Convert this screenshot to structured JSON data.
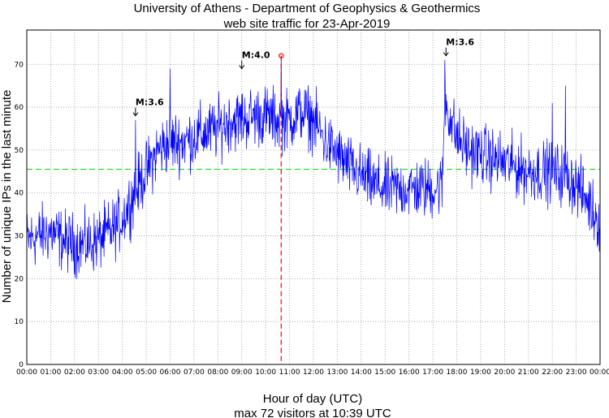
{
  "chart_data": {
    "type": "line",
    "title": "University of Athens - Department of Geophysics & Geothermics",
    "subtitle": "web site traffic for 23-Apr-2019",
    "xlabel": "Hour of day (UTC)",
    "ylabel": "Number of unique IPs in the last minute",
    "summary": "max 72 visitors at 10:39 UTC",
    "xlim": [
      0,
      24
    ],
    "ylim": [
      0,
      78
    ],
    "x_ticks": [
      "00:00",
      "01:00",
      "02:00",
      "03:00",
      "04:00",
      "05:00",
      "06:00",
      "07:00",
      "08:00",
      "09:00",
      "10:00",
      "11:00",
      "12:00",
      "13:00",
      "14:00",
      "15:00",
      "16:00",
      "17:00",
      "18:00",
      "19:00",
      "20:00",
      "21:00",
      "22:00",
      "23:00",
      "00:00"
    ],
    "y_ticks": [
      0,
      10,
      20,
      30,
      40,
      50,
      60,
      70
    ],
    "grid": true,
    "series": [
      {
        "color": "#0000ff",
        "trend": [
          [
            0.0,
            29
          ],
          [
            0.5,
            30
          ],
          [
            1.0,
            31
          ],
          [
            1.5,
            29
          ],
          [
            2.0,
            28
          ],
          [
            2.5,
            28
          ],
          [
            3.0,
            29
          ],
          [
            3.5,
            31
          ],
          [
            4.0,
            34
          ],
          [
            4.5,
            40
          ],
          [
            5.0,
            45
          ],
          [
            5.5,
            50
          ],
          [
            6.0,
            52
          ],
          [
            6.5,
            52
          ],
          [
            7.0,
            53
          ],
          [
            7.5,
            54
          ],
          [
            8.0,
            55
          ],
          [
            8.5,
            57
          ],
          [
            9.0,
            57
          ],
          [
            9.5,
            58
          ],
          [
            10.0,
            58
          ],
          [
            10.5,
            57
          ],
          [
            11.0,
            57
          ],
          [
            11.5,
            59
          ],
          [
            12.0,
            57
          ],
          [
            12.5,
            52
          ],
          [
            13.0,
            49
          ],
          [
            13.5,
            46
          ],
          [
            14.0,
            44
          ],
          [
            14.5,
            42
          ],
          [
            15.0,
            41
          ],
          [
            15.5,
            41
          ],
          [
            16.0,
            41
          ],
          [
            16.5,
            41
          ],
          [
            17.0,
            41
          ],
          [
            17.4,
            42
          ],
          [
            17.5,
            62
          ],
          [
            17.7,
            58
          ],
          [
            18.0,
            53
          ],
          [
            18.5,
            50
          ],
          [
            19.0,
            49
          ],
          [
            19.5,
            48
          ],
          [
            20.0,
            47
          ],
          [
            20.5,
            46
          ],
          [
            21.0,
            45
          ],
          [
            21.5,
            45
          ],
          [
            22.0,
            45
          ],
          [
            22.5,
            44
          ],
          [
            23.0,
            42
          ],
          [
            23.5,
            38
          ],
          [
            24.0,
            33
          ]
        ],
        "spikes": [
          [
            4.55,
            57
          ],
          [
            6.0,
            69
          ],
          [
            9.0,
            63
          ],
          [
            10.65,
            72
          ],
          [
            17.5,
            71
          ],
          [
            22.55,
            65
          ],
          [
            22.0,
            61
          ]
        ]
      }
    ],
    "mean_line": {
      "y": 45.5,
      "color": "#00cc00"
    },
    "max_marker": {
      "x": 10.65,
      "y": 72,
      "color": "#ff0000"
    },
    "annotations": [
      {
        "label": "M:3.6",
        "x": 4.55,
        "y": 58
      },
      {
        "label": "M:4.0",
        "x": 9.0,
        "y": 69
      },
      {
        "label": "M:3.6",
        "x": 17.55,
        "y": 72
      }
    ]
  }
}
